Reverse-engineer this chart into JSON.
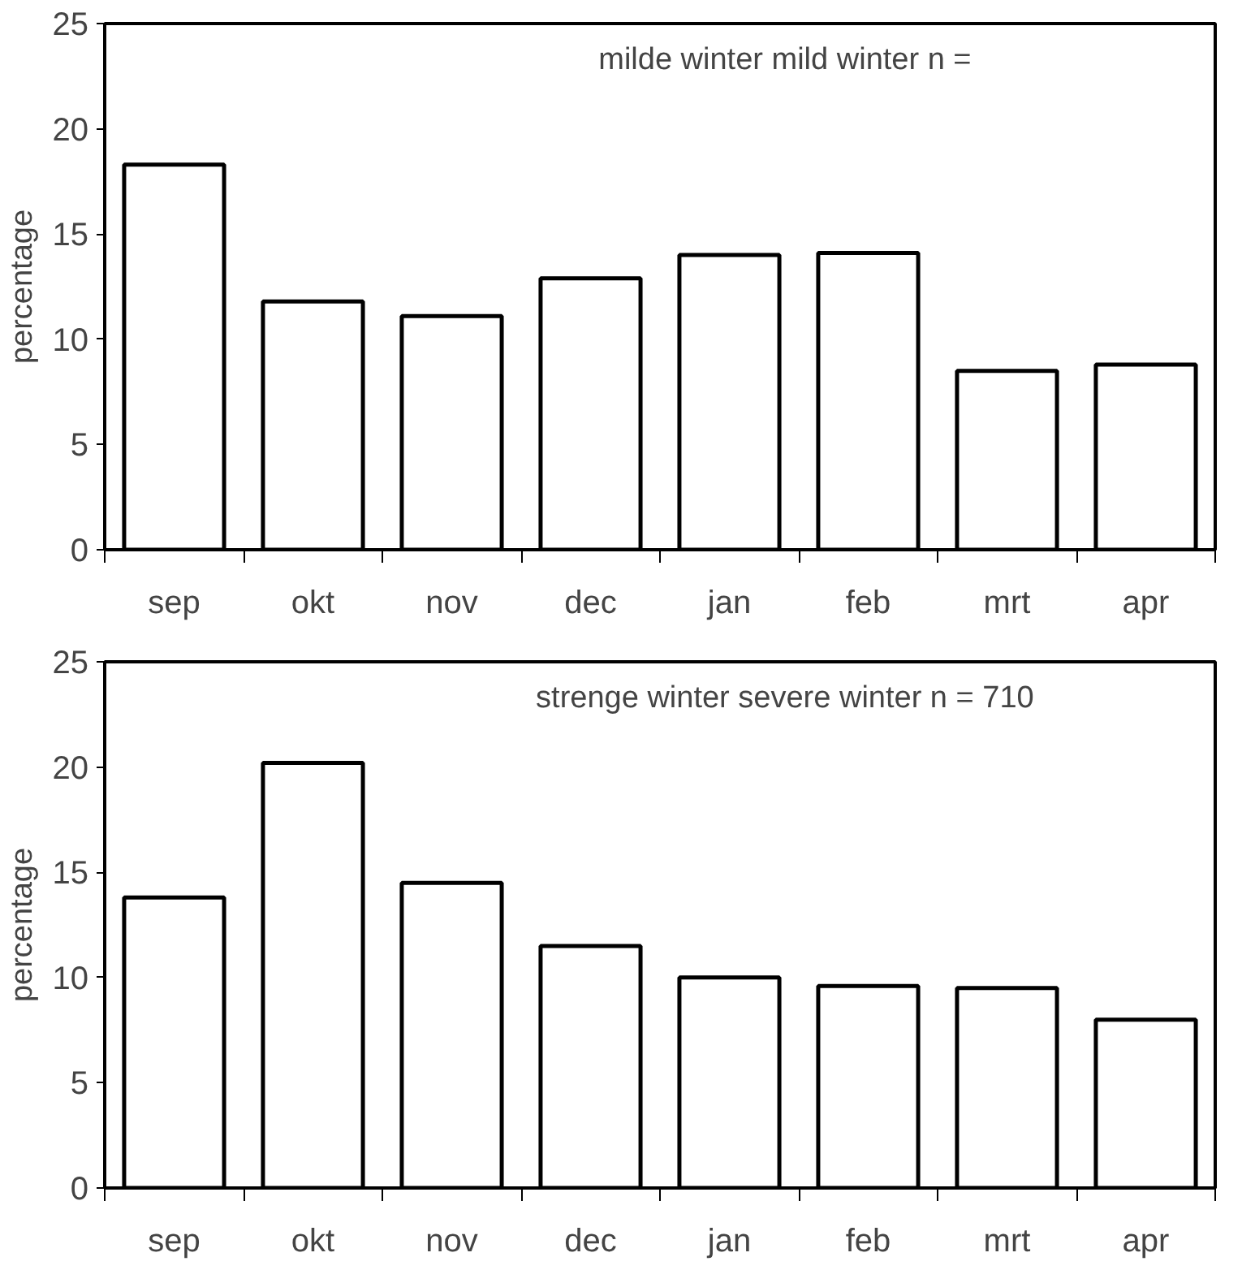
{
  "chart_data": [
    {
      "type": "bar",
      "categories": [
        "sep",
        "okt",
        "nov",
        "dec",
        "jan",
        "feb",
        "mrt",
        "apr"
      ],
      "ylabel": "percentage",
      "annotations": [
        "milde winter mild winter n ="
      ],
      "values": [
        18.3,
        11.8,
        11.1,
        12.9,
        14.0,
        14.1,
        8.5,
        8.8
      ],
      "color": "#ffffff",
      "ylim": [
        0,
        25
      ],
      "yticks": [
        0,
        5,
        10,
        15,
        20,
        25
      ],
      "grid": false
    },
    {
      "type": "bar",
      "categories": [
        "sep",
        "okt",
        "nov",
        "dec",
        "jan",
        "feb",
        "mrt",
        "apr"
      ],
      "ylabel": "percentage",
      "annotations": [
        "strenge winter severe winter n = 710"
      ],
      "values": [
        13.8,
        20.2,
        14.5,
        11.5,
        10.0,
        9.6,
        9.5,
        8.0
      ],
      "color": "#ffffff",
      "ylim": [
        0,
        25
      ],
      "yticks": [
        0,
        5,
        10,
        15,
        20,
        25
      ],
      "grid": false
    }
  ]
}
